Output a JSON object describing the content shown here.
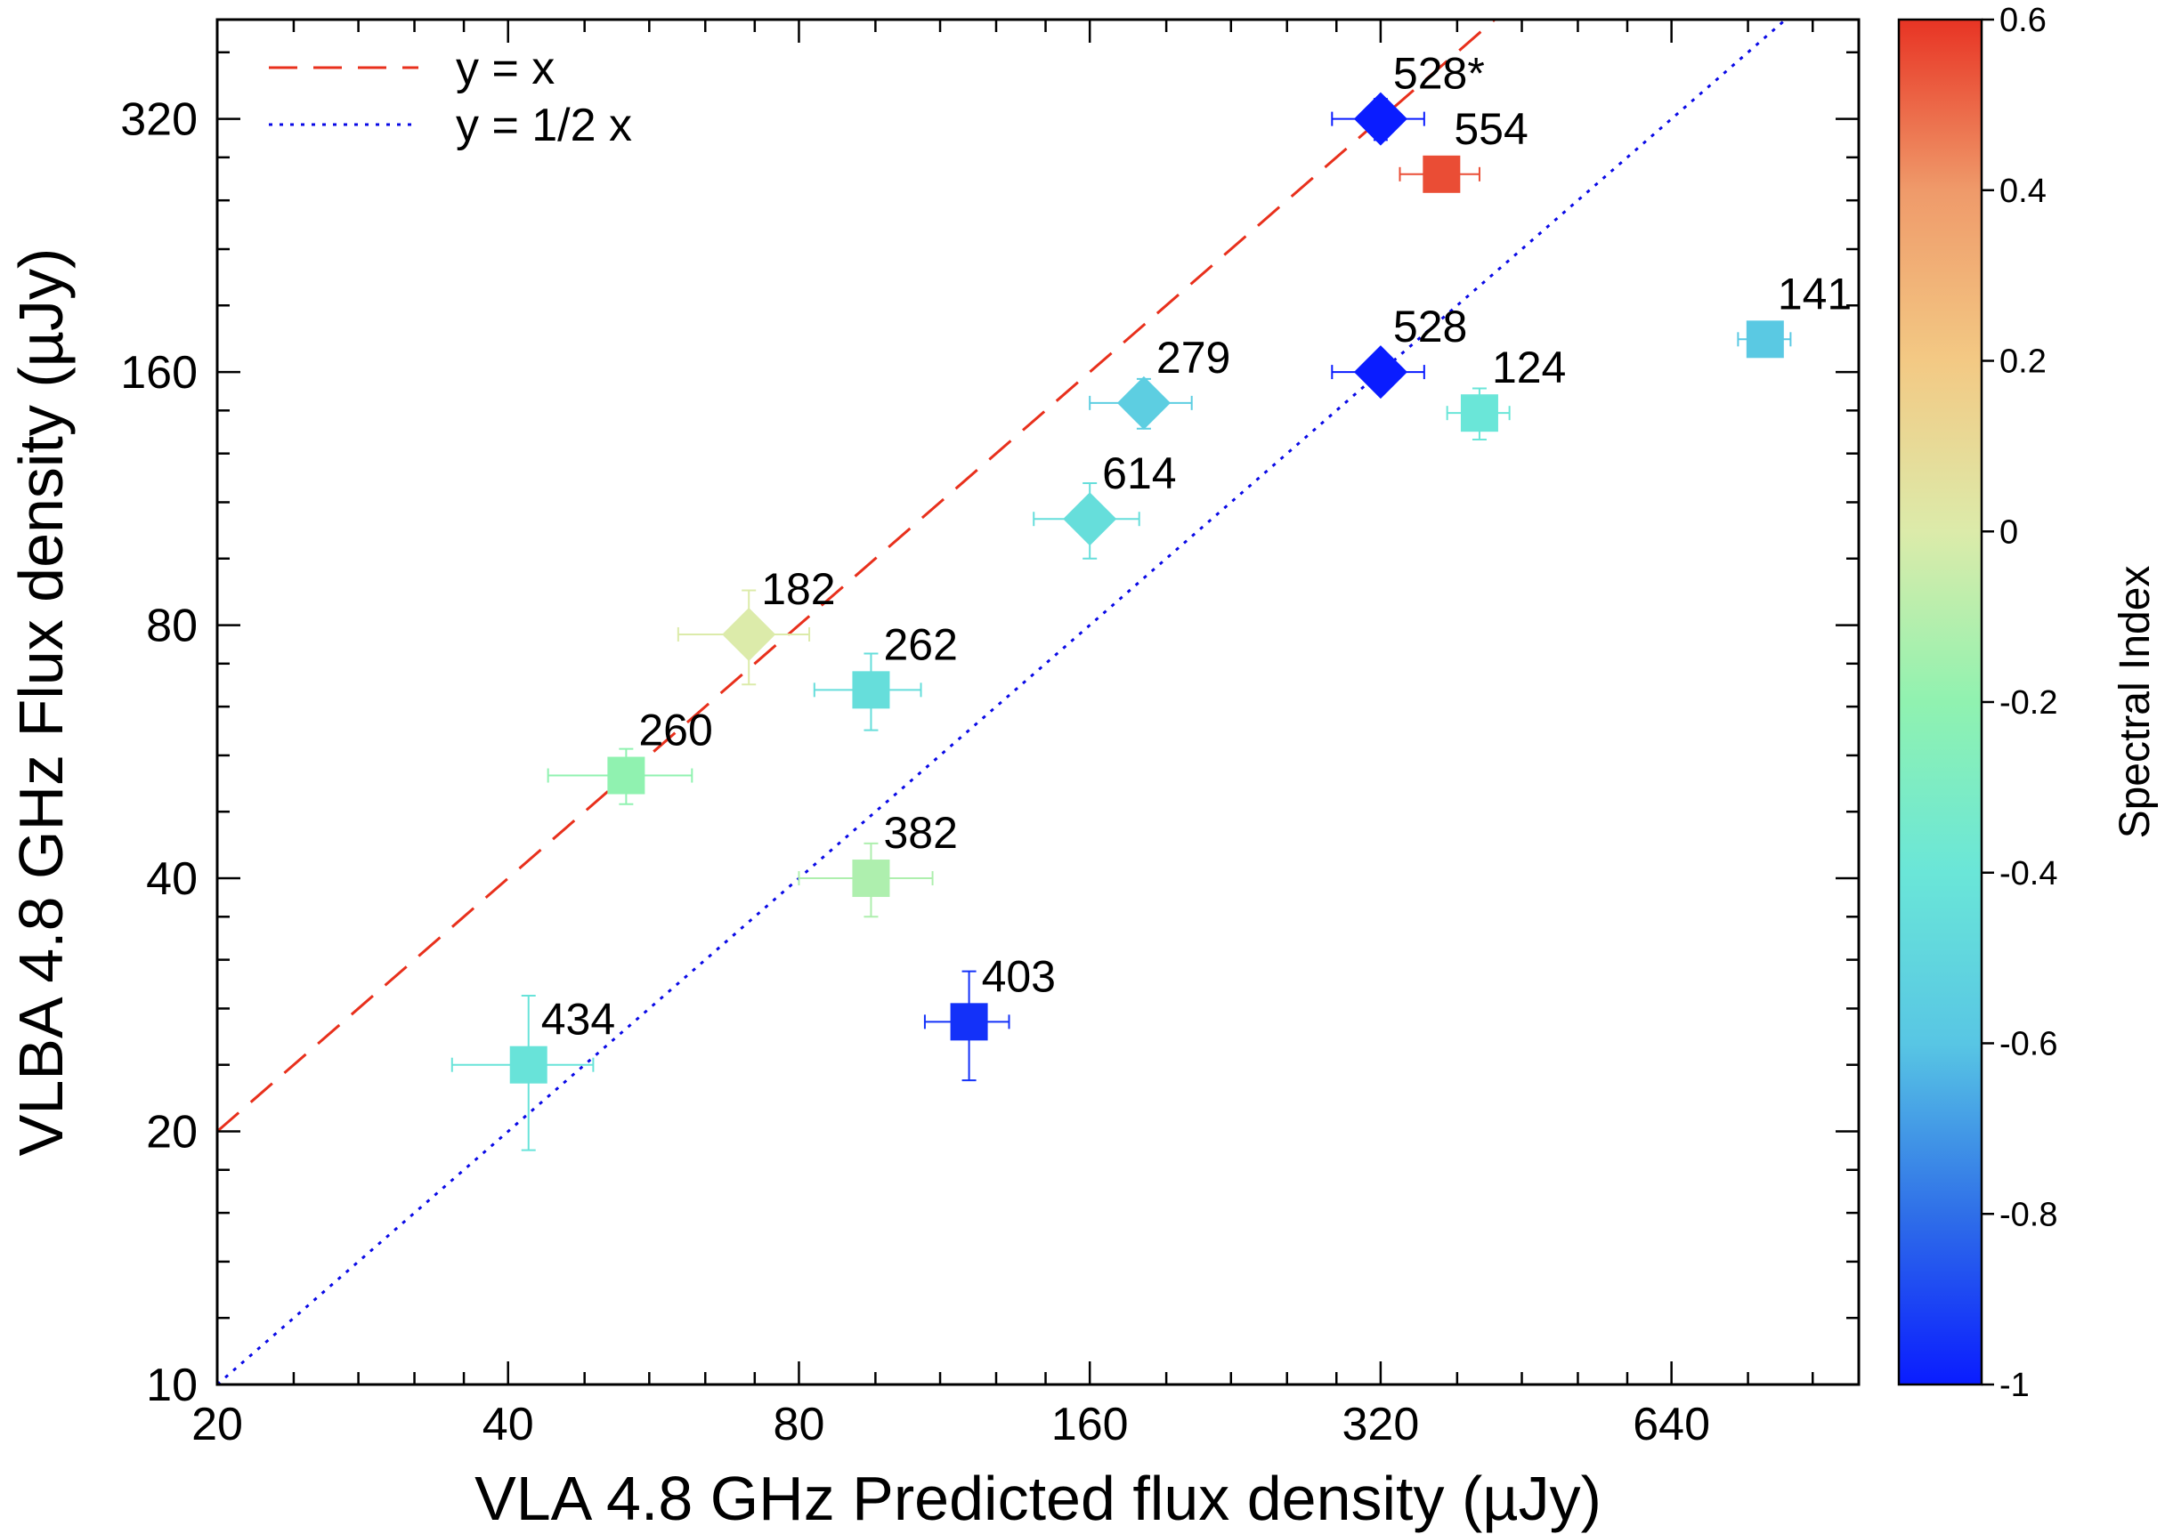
{
  "chart_data": {
    "type": "scatter",
    "xscale": "log2",
    "yscale": "log2",
    "xlabel": "VLA 4.8 GHz Predicted flux density (µJy)",
    "ylabel": "VLBA 4.8 GHz Flux density (µJy)",
    "xlim": [
      20,
      1000
    ],
    "ylim": [
      10,
      420
    ],
    "xticks": [
      20,
      40,
      80,
      160,
      320,
      640
    ],
    "yticks": [
      10,
      20,
      40,
      80,
      160,
      320
    ],
    "lines": [
      {
        "name": "y = x",
        "factor": 1,
        "style": "dashed",
        "color": "#e8301c"
      },
      {
        "name": "y = 1/2 x",
        "factor": 0.5,
        "style": "dotted",
        "color": "#0a0ae6"
      }
    ],
    "colorbar": {
      "title": "Spectral Index",
      "range": [
        -1,
        0.6
      ],
      "ticks": [
        "0.6",
        "0.4",
        "0.2",
        "0",
        "-0.2",
        "-0.4",
        "-0.6",
        "-0.8",
        "-1"
      ],
      "stops": [
        {
          "v": -1.0,
          "c": "#0a1cff"
        },
        {
          "v": -0.8,
          "c": "#2f6fe8"
        },
        {
          "v": -0.6,
          "c": "#58c6e4"
        },
        {
          "v": -0.4,
          "c": "#6ae6d8"
        },
        {
          "v": -0.2,
          "c": "#90f2b0"
        },
        {
          "v": 0.0,
          "c": "#dcebaa"
        },
        {
          "v": 0.2,
          "c": "#f3c984"
        },
        {
          "v": 0.4,
          "c": "#ef9a6a"
        },
        {
          "v": 0.6,
          "c": "#e83424"
        }
      ]
    },
    "points": [
      {
        "label": "528*",
        "x": 320,
        "y": 320,
        "xerr": 35,
        "yerr": 18,
        "marker": "diamond",
        "alpha": -1.0
      },
      {
        "label": "554",
        "x": 370,
        "y": 275,
        "xerr": 35,
        "yerr": 0,
        "marker": "square",
        "alpha": 0.55
      },
      {
        "label": "141",
        "x": 800,
        "y": 175,
        "xerr": 50,
        "yerr": 0,
        "marker": "square",
        "alpha": -0.58
      },
      {
        "label": "528",
        "x": 320,
        "y": 160,
        "xerr": 35,
        "yerr": 8,
        "marker": "diamond",
        "alpha": -1.0
      },
      {
        "label": "124",
        "x": 405,
        "y": 143,
        "xerr": 30,
        "yerr": 10,
        "marker": "square",
        "alpha": -0.4
      },
      {
        "label": "279",
        "x": 182,
        "y": 147,
        "xerr": 22,
        "yerr": 10,
        "marker": "diamond",
        "alpha": -0.55
      },
      {
        "label": "614",
        "x": 160,
        "y": 107,
        "xerr": 20,
        "yerr": 11,
        "marker": "diamond",
        "alpha": -0.45
      },
      {
        "label": "182",
        "x": 71,
        "y": 78,
        "xerr": 11,
        "yerr": 10,
        "marker": "diamond",
        "alpha": 0.0
      },
      {
        "label": "262",
        "x": 95,
        "y": 67,
        "xerr": 12,
        "yerr": 7,
        "marker": "square",
        "alpha": -0.45
      },
      {
        "label": "260",
        "x": 53,
        "y": 53,
        "xerr": 9,
        "yerr": 4,
        "marker": "square",
        "alpha": -0.2
      },
      {
        "label": "382",
        "x": 95,
        "y": 40,
        "xerr": 15,
        "yerr": 4,
        "marker": "square",
        "alpha": -0.12
      },
      {
        "label": "403",
        "x": 120,
        "y": 27,
        "xerr": 12,
        "yerr": 4,
        "marker": "square",
        "alpha": -0.95
      },
      {
        "label": "434",
        "x": 42,
        "y": 24,
        "xerr": 7,
        "yerr": 5,
        "marker": "square",
        "alpha": -0.42
      }
    ]
  }
}
